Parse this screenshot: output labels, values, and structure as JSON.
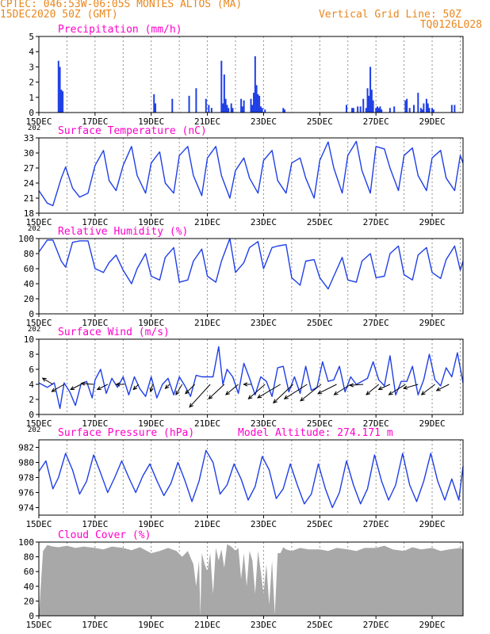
{
  "header": {
    "line1": "CPTEC:   046:53W-06:05S  MONTES ALTOS (MA)",
    "line2": "15DEC2020 50Z (GMT)",
    "grid_note": "Vertical Grid Line: 50Z",
    "code": "TQ0126L028"
  },
  "colors": {
    "header": "#e8871e",
    "title": "#ff00cc",
    "series": "#1f3fe6",
    "cloud": "#a8a8a8",
    "axis": "#000000"
  },
  "chart_data": [
    {
      "type": "bar",
      "title": "Precipitation (mm/h)",
      "ylim": [
        0,
        5
      ],
      "yticks": [
        "0",
        "1",
        "2",
        "3",
        "4",
        "5"
      ],
      "x_tick_labels": [
        "15DEC",
        "17DEC",
        "19DEC",
        "21DEC",
        "23DEC",
        "25DEC",
        "27DEC",
        "29DEC"
      ],
      "x_corner_label": "202",
      "days": [
        15.0,
        30.1
      ],
      "series": [
        {
          "x": [
            15.7,
            15.75,
            15.8,
            15.85,
            19.1,
            19.15,
            19.75,
            20.35,
            20.6,
            20.95,
            21.05,
            21.15,
            21.5,
            21.55,
            21.6,
            21.65,
            21.7,
            21.75,
            21.85,
            21.9,
            22.2,
            22.25,
            22.3,
            22.55,
            22.6,
            22.65,
            22.7,
            22.75,
            22.8,
            22.85,
            22.9,
            22.95,
            23.05,
            23.7,
            23.75,
            25.95,
            26.15,
            26.2,
            26.35,
            26.45,
            26.55,
            26.65,
            26.7,
            26.75,
            26.8,
            26.85,
            26.9,
            27.0,
            27.05,
            27.1,
            27.15,
            27.2,
            27.5,
            27.65,
            28.05,
            28.1,
            28.2,
            28.35,
            28.5,
            28.6,
            28.65,
            28.7,
            28.8,
            28.85,
            28.9,
            29.0,
            29.05,
            29.7,
            29.8
          ],
          "values": [
            3.4,
            3.0,
            1.5,
            1.4,
            1.2,
            0.6,
            0.9,
            1.1,
            1.6,
            0.9,
            0.5,
            0.3,
            3.4,
            0.6,
            2.5,
            0.9,
            0.5,
            0.3,
            0.6,
            0.3,
            0.9,
            0.4,
            0.8,
            0.9,
            0.5,
            1.3,
            3.7,
            1.8,
            1.2,
            1.1,
            0.4,
            0.3,
            0.2,
            0.3,
            0.2,
            0.5,
            0.3,
            0.3,
            0.4,
            0.4,
            0.9,
            0.3,
            1.6,
            1.1,
            3.0,
            1.5,
            0.8,
            0.3,
            0.4,
            0.3,
            0.4,
            0.2,
            0.3,
            0.4,
            0.8,
            0.9,
            0.3,
            0.5,
            1.3,
            0.3,
            0.2,
            0.6,
            0.9,
            0.6,
            0.3,
            0.3,
            0.2,
            0.5,
            0.5
          ]
        }
      ]
    },
    {
      "type": "line",
      "title": "Surface Temperature (nC)",
      "ylim": [
        18,
        33
      ],
      "yticks": [
        "18",
        "21",
        "24",
        "27",
        "30",
        "33"
      ],
      "x_tick_labels": [
        "15DEC",
        "17DEC",
        "19DEC",
        "21DEC",
        "23DEC",
        "25DEC",
        "27DEC",
        "29DEC"
      ],
      "x_corner_label": "202",
      "days": [
        15.0,
        30.1
      ],
      "series": [
        {
          "x": [
            15.0,
            15.3,
            15.5,
            15.8,
            15.95,
            16.2,
            16.45,
            16.75,
            17.0,
            17.3,
            17.5,
            17.75,
            18.0,
            18.3,
            18.5,
            18.8,
            19.0,
            19.3,
            19.5,
            19.8,
            20.0,
            20.3,
            20.5,
            20.8,
            21.0,
            21.3,
            21.5,
            21.8,
            22.0,
            22.3,
            22.5,
            22.8,
            23.0,
            23.3,
            23.5,
            23.8,
            24.0,
            24.3,
            24.5,
            24.8,
            25.0,
            25.3,
            25.5,
            25.8,
            26.0,
            26.3,
            26.5,
            26.8,
            27.0,
            27.3,
            27.5,
            27.8,
            28.0,
            28.3,
            28.5,
            28.8,
            29.0,
            29.3,
            29.5,
            29.8,
            30.0,
            30.1
          ],
          "values": [
            22.5,
            20.0,
            19.5,
            25.0,
            27.2,
            23.0,
            21.2,
            22.0,
            27.5,
            30.5,
            24.5,
            22.5,
            27.5,
            31.3,
            25.5,
            22.0,
            28.0,
            30.2,
            24.0,
            22.0,
            29.5,
            31.3,
            25.5,
            21.5,
            29.0,
            31.3,
            25.5,
            21.0,
            26.5,
            29.0,
            25.0,
            22.0,
            28.5,
            30.5,
            24.5,
            22.0,
            28.0,
            29.0,
            25.0,
            21.0,
            28.5,
            32.2,
            27.0,
            22.0,
            29.5,
            32.3,
            26.5,
            22.0,
            31.3,
            30.8,
            27.0,
            22.5,
            29.5,
            31.0,
            25.5,
            22.5,
            29.0,
            30.5,
            25.0,
            22.5,
            29.5,
            28.0
          ]
        }
      ]
    },
    {
      "type": "line",
      "title": "Relative Humidity (%)",
      "ylim": [
        0,
        100
      ],
      "yticks": [
        "0",
        "20",
        "40",
        "60",
        "80",
        "100"
      ],
      "x_tick_labels": [
        "15DEC",
        "17DEC",
        "19DEC",
        "21DEC",
        "23DEC",
        "25DEC",
        "27DEC",
        "29DEC"
      ],
      "x_corner_label": "202",
      "days": [
        15.0,
        30.1
      ],
      "series": [
        {
          "x": [
            15.0,
            15.3,
            15.5,
            15.8,
            15.95,
            16.2,
            16.45,
            16.75,
            17.0,
            17.3,
            17.5,
            17.75,
            18.0,
            18.3,
            18.5,
            18.8,
            19.0,
            19.3,
            19.5,
            19.8,
            20.0,
            20.3,
            20.5,
            20.8,
            21.0,
            21.3,
            21.5,
            21.8,
            22.0,
            22.3,
            22.5,
            22.8,
            23.0,
            23.3,
            23.5,
            23.8,
            24.0,
            24.3,
            24.5,
            24.8,
            25.0,
            25.3,
            25.5,
            25.8,
            26.0,
            26.3,
            26.5,
            26.8,
            27.0,
            27.3,
            27.5,
            27.8,
            28.0,
            28.3,
            28.5,
            28.8,
            29.0,
            29.3,
            29.5,
            29.8,
            30.0,
            30.1
          ],
          "values": [
            82,
            98,
            98,
            70,
            62,
            95,
            97,
            97,
            60,
            55,
            68,
            78,
            58,
            40,
            60,
            80,
            50,
            45,
            75,
            88,
            42,
            45,
            70,
            86,
            50,
            42,
            70,
            100,
            55,
            68,
            88,
            96,
            60,
            88,
            90,
            92,
            48,
            38,
            70,
            72,
            48,
            33,
            50,
            75,
            45,
            42,
            70,
            80,
            48,
            50,
            80,
            90,
            52,
            45,
            78,
            88,
            55,
            47,
            72,
            90,
            58,
            70
          ]
        }
      ]
    },
    {
      "type": "line",
      "title": "Surface Wind (m/s)",
      "ylim": [
        0,
        10
      ],
      "yticks": [
        "0",
        "2",
        "4",
        "6",
        "8",
        "10"
      ],
      "x_tick_labels": [
        "15DEC",
        "17DEC",
        "19DEC",
        "21DEC",
        "23DEC",
        "25DEC",
        "27DEC",
        "29DEC"
      ],
      "x_corner_label": "202",
      "days": [
        15.0,
        30.1
      ],
      "series": [
        {
          "x": [
            15.0,
            15.3,
            15.55,
            15.75,
            15.9,
            16.1,
            16.3,
            16.5,
            16.7,
            16.9,
            17.0,
            17.2,
            17.4,
            17.6,
            17.8,
            18.0,
            18.2,
            18.4,
            18.6,
            18.8,
            19.0,
            19.2,
            19.4,
            19.6,
            19.8,
            20.0,
            20.2,
            20.4,
            20.6,
            20.8,
            21.0,
            21.2,
            21.4,
            21.55,
            21.7,
            21.9,
            22.1,
            22.3,
            22.5,
            22.7,
            22.9,
            23.1,
            23.3,
            23.5,
            23.7,
            23.9,
            24.1,
            24.3,
            24.5,
            24.7,
            24.9,
            25.1,
            25.3,
            25.5,
            25.7,
            25.9,
            26.1,
            26.3,
            26.5,
            26.7,
            26.9,
            27.1,
            27.3,
            27.5,
            27.7,
            27.9,
            28.1,
            28.3,
            28.5,
            28.7,
            28.9,
            29.1,
            29.3,
            29.5,
            29.7,
            29.9,
            30.1
          ],
          "values": [
            4.2,
            3.6,
            4.2,
            0.8,
            4.2,
            3.0,
            1.2,
            4.0,
            4.4,
            2.2,
            4.6,
            6.0,
            2.8,
            4.8,
            3.6,
            5.0,
            2.6,
            5.0,
            3.4,
            2.4,
            5.0,
            2.2,
            4.0,
            4.8,
            2.6,
            5.0,
            3.8,
            2.4,
            5.2,
            5.0,
            5.0,
            5.0,
            9.0,
            4.0,
            6.0,
            5.0,
            2.8,
            6.8,
            4.8,
            2.6,
            5.0,
            4.4,
            2.4,
            6.2,
            6.4,
            3.0,
            5.0,
            2.8,
            6.4,
            3.2,
            3.6,
            7.0,
            4.4,
            4.6,
            6.4,
            3.0,
            5.0,
            4.0,
            4.4,
            4.8,
            7.0,
            4.6,
            3.8,
            7.8,
            2.6,
            4.4,
            4.4,
            6.4,
            2.6,
            4.6,
            8.0,
            4.6,
            3.8,
            6.2,
            5.0,
            8.2,
            4.2
          ]
        }
      ],
      "wind_vectors": {
        "x": [
          15.5,
          15.9,
          16.5,
          16.95,
          17.45,
          18.05,
          18.55,
          19.05,
          19.65,
          20.1,
          20.55,
          21.1,
          21.6,
          22.1,
          22.55,
          23.05,
          23.6,
          24.05,
          24.55,
          25.05,
          25.6,
          26.1,
          26.55,
          27.1,
          27.5,
          28.05,
          28.5,
          29.1,
          29.6
        ],
        "u": [
          -1.0,
          -1.2,
          -1.0,
          -1.2,
          -1.0,
          -0.8,
          -0.5,
          -0.2,
          -0.4,
          -0.6,
          -0.9,
          -2.0,
          -1.5,
          -1.2,
          -0.7,
          -1.6,
          -2.2,
          -1.9,
          -2.2,
          -2.0,
          -1.8,
          -1.6,
          -1.3,
          -1.2,
          -1.1,
          -1.6,
          -1.4,
          -1.3,
          -1.2
        ],
        "v": [
          0.6,
          -0.7,
          -0.5,
          0.1,
          -0.5,
          0.0,
          -0.5,
          -0.7,
          -0.4,
          -1.0,
          -0.9,
          -2.2,
          -1.4,
          -1.0,
          0.0,
          -1.4,
          -1.3,
          -1.8,
          -1.4,
          -1.6,
          -0.9,
          -1.0,
          -0.1,
          -1.0,
          -0.5,
          -1.0,
          -0.4,
          -1.0,
          -0.6
        ]
      }
    },
    {
      "type": "line",
      "title": "Surface Pressure (hPa)",
      "subtitle": "Model Altitude: 274.171 m",
      "ylim": [
        973,
        983
      ],
      "yticks": [
        "974",
        "976",
        "978",
        "980",
        "982"
      ],
      "x_tick_labels": [
        "15DEC",
        "17DEC",
        "19DEC",
        "21DEC",
        "23DEC",
        "25DEC",
        "27DEC",
        "29DEC"
      ],
      "x_corner_label": "",
      "days": [
        15.0,
        30.1
      ],
      "series": [
        {
          "x": [
            15.0,
            15.25,
            15.5,
            15.7,
            15.95,
            16.2,
            16.45,
            16.7,
            16.95,
            17.2,
            17.45,
            17.7,
            17.95,
            18.2,
            18.45,
            18.7,
            18.95,
            19.2,
            19.45,
            19.7,
            19.95,
            20.2,
            20.45,
            20.7,
            20.95,
            21.2,
            21.45,
            21.7,
            21.95,
            22.2,
            22.45,
            22.7,
            22.95,
            23.2,
            23.45,
            23.7,
            23.95,
            24.2,
            24.45,
            24.7,
            24.95,
            25.2,
            25.45,
            25.7,
            25.95,
            26.2,
            26.45,
            26.7,
            26.95,
            27.2,
            27.45,
            27.7,
            27.95,
            28.2,
            28.45,
            28.7,
            28.95,
            29.2,
            29.45,
            29.7,
            29.95,
            30.1
          ],
          "values": [
            978.8,
            980.2,
            976.5,
            978.0,
            981.2,
            979.0,
            975.8,
            977.5,
            981.0,
            978.6,
            976.0,
            978.0,
            980.2,
            978.0,
            976.0,
            978.2,
            979.8,
            977.6,
            975.6,
            977.2,
            980.0,
            977.6,
            974.8,
            977.5,
            981.6,
            980.0,
            975.8,
            977.0,
            979.8,
            977.8,
            975.0,
            976.8,
            980.8,
            979.0,
            975.2,
            976.5,
            979.8,
            977.0,
            974.5,
            975.8,
            979.8,
            976.5,
            974.0,
            976.0,
            980.2,
            977.0,
            974.5,
            976.5,
            981.0,
            977.5,
            975.0,
            977.0,
            981.2,
            977.0,
            974.8,
            977.5,
            981.2,
            977.5,
            975.0,
            977.8,
            975.0,
            979.5
          ]
        }
      ]
    },
    {
      "type": "area",
      "title": "Cloud Cover (%)",
      "ylim": [
        0,
        100
      ],
      "yticks": [
        "0",
        "20",
        "40",
        "60",
        "80",
        "100"
      ],
      "x_tick_labels": [
        "15DEC",
        "17DEC",
        "19DEC",
        "21DEC",
        "23DEC",
        "25DEC",
        "27DEC",
        "29DEC"
      ],
      "x_corner_label": "",
      "days": [
        15.0,
        30.1
      ],
      "series": [
        {
          "x": [
            15.0,
            15.15,
            15.3,
            15.5,
            15.7,
            16.0,
            16.3,
            16.6,
            17.0,
            17.3,
            17.6,
            18.0,
            18.3,
            18.6,
            19.0,
            19.3,
            19.6,
            19.9,
            20.1,
            20.3,
            20.5,
            20.6,
            20.7,
            20.75,
            20.8,
            20.9,
            21.0,
            21.1,
            21.2,
            21.3,
            21.4,
            21.5,
            21.6,
            21.7,
            21.8,
            21.9,
            22.0,
            22.1,
            22.2,
            22.3,
            22.4,
            22.5,
            22.6,
            22.7,
            22.8,
            22.9,
            23.0,
            23.1,
            23.2,
            23.3,
            23.4,
            23.5,
            23.6,
            23.7,
            23.8,
            24.0,
            24.3,
            24.6,
            25.0,
            25.3,
            25.6,
            26.0,
            26.3,
            26.6,
            27.0,
            27.3,
            27.6,
            28.0,
            28.3,
            28.6,
            29.0,
            29.3,
            29.6,
            30.0,
            30.1
          ],
          "values": [
            0,
            88,
            96,
            94,
            93,
            95,
            92,
            94,
            92,
            90,
            94,
            92,
            89,
            93,
            85,
            88,
            92,
            88,
            80,
            88,
            70,
            40,
            75,
            0,
            85,
            70,
            60,
            85,
            30,
            92,
            75,
            90,
            65,
            97,
            95,
            92,
            88,
            92,
            50,
            85,
            40,
            88,
            75,
            30,
            88,
            60,
            30,
            70,
            15,
            75,
            2,
            85,
            85,
            93,
            90,
            88,
            92,
            90,
            90,
            88,
            92,
            90,
            88,
            92,
            92,
            95,
            90,
            88,
            93,
            90,
            92,
            88,
            90,
            92,
            90
          ]
        }
      ]
    }
  ]
}
